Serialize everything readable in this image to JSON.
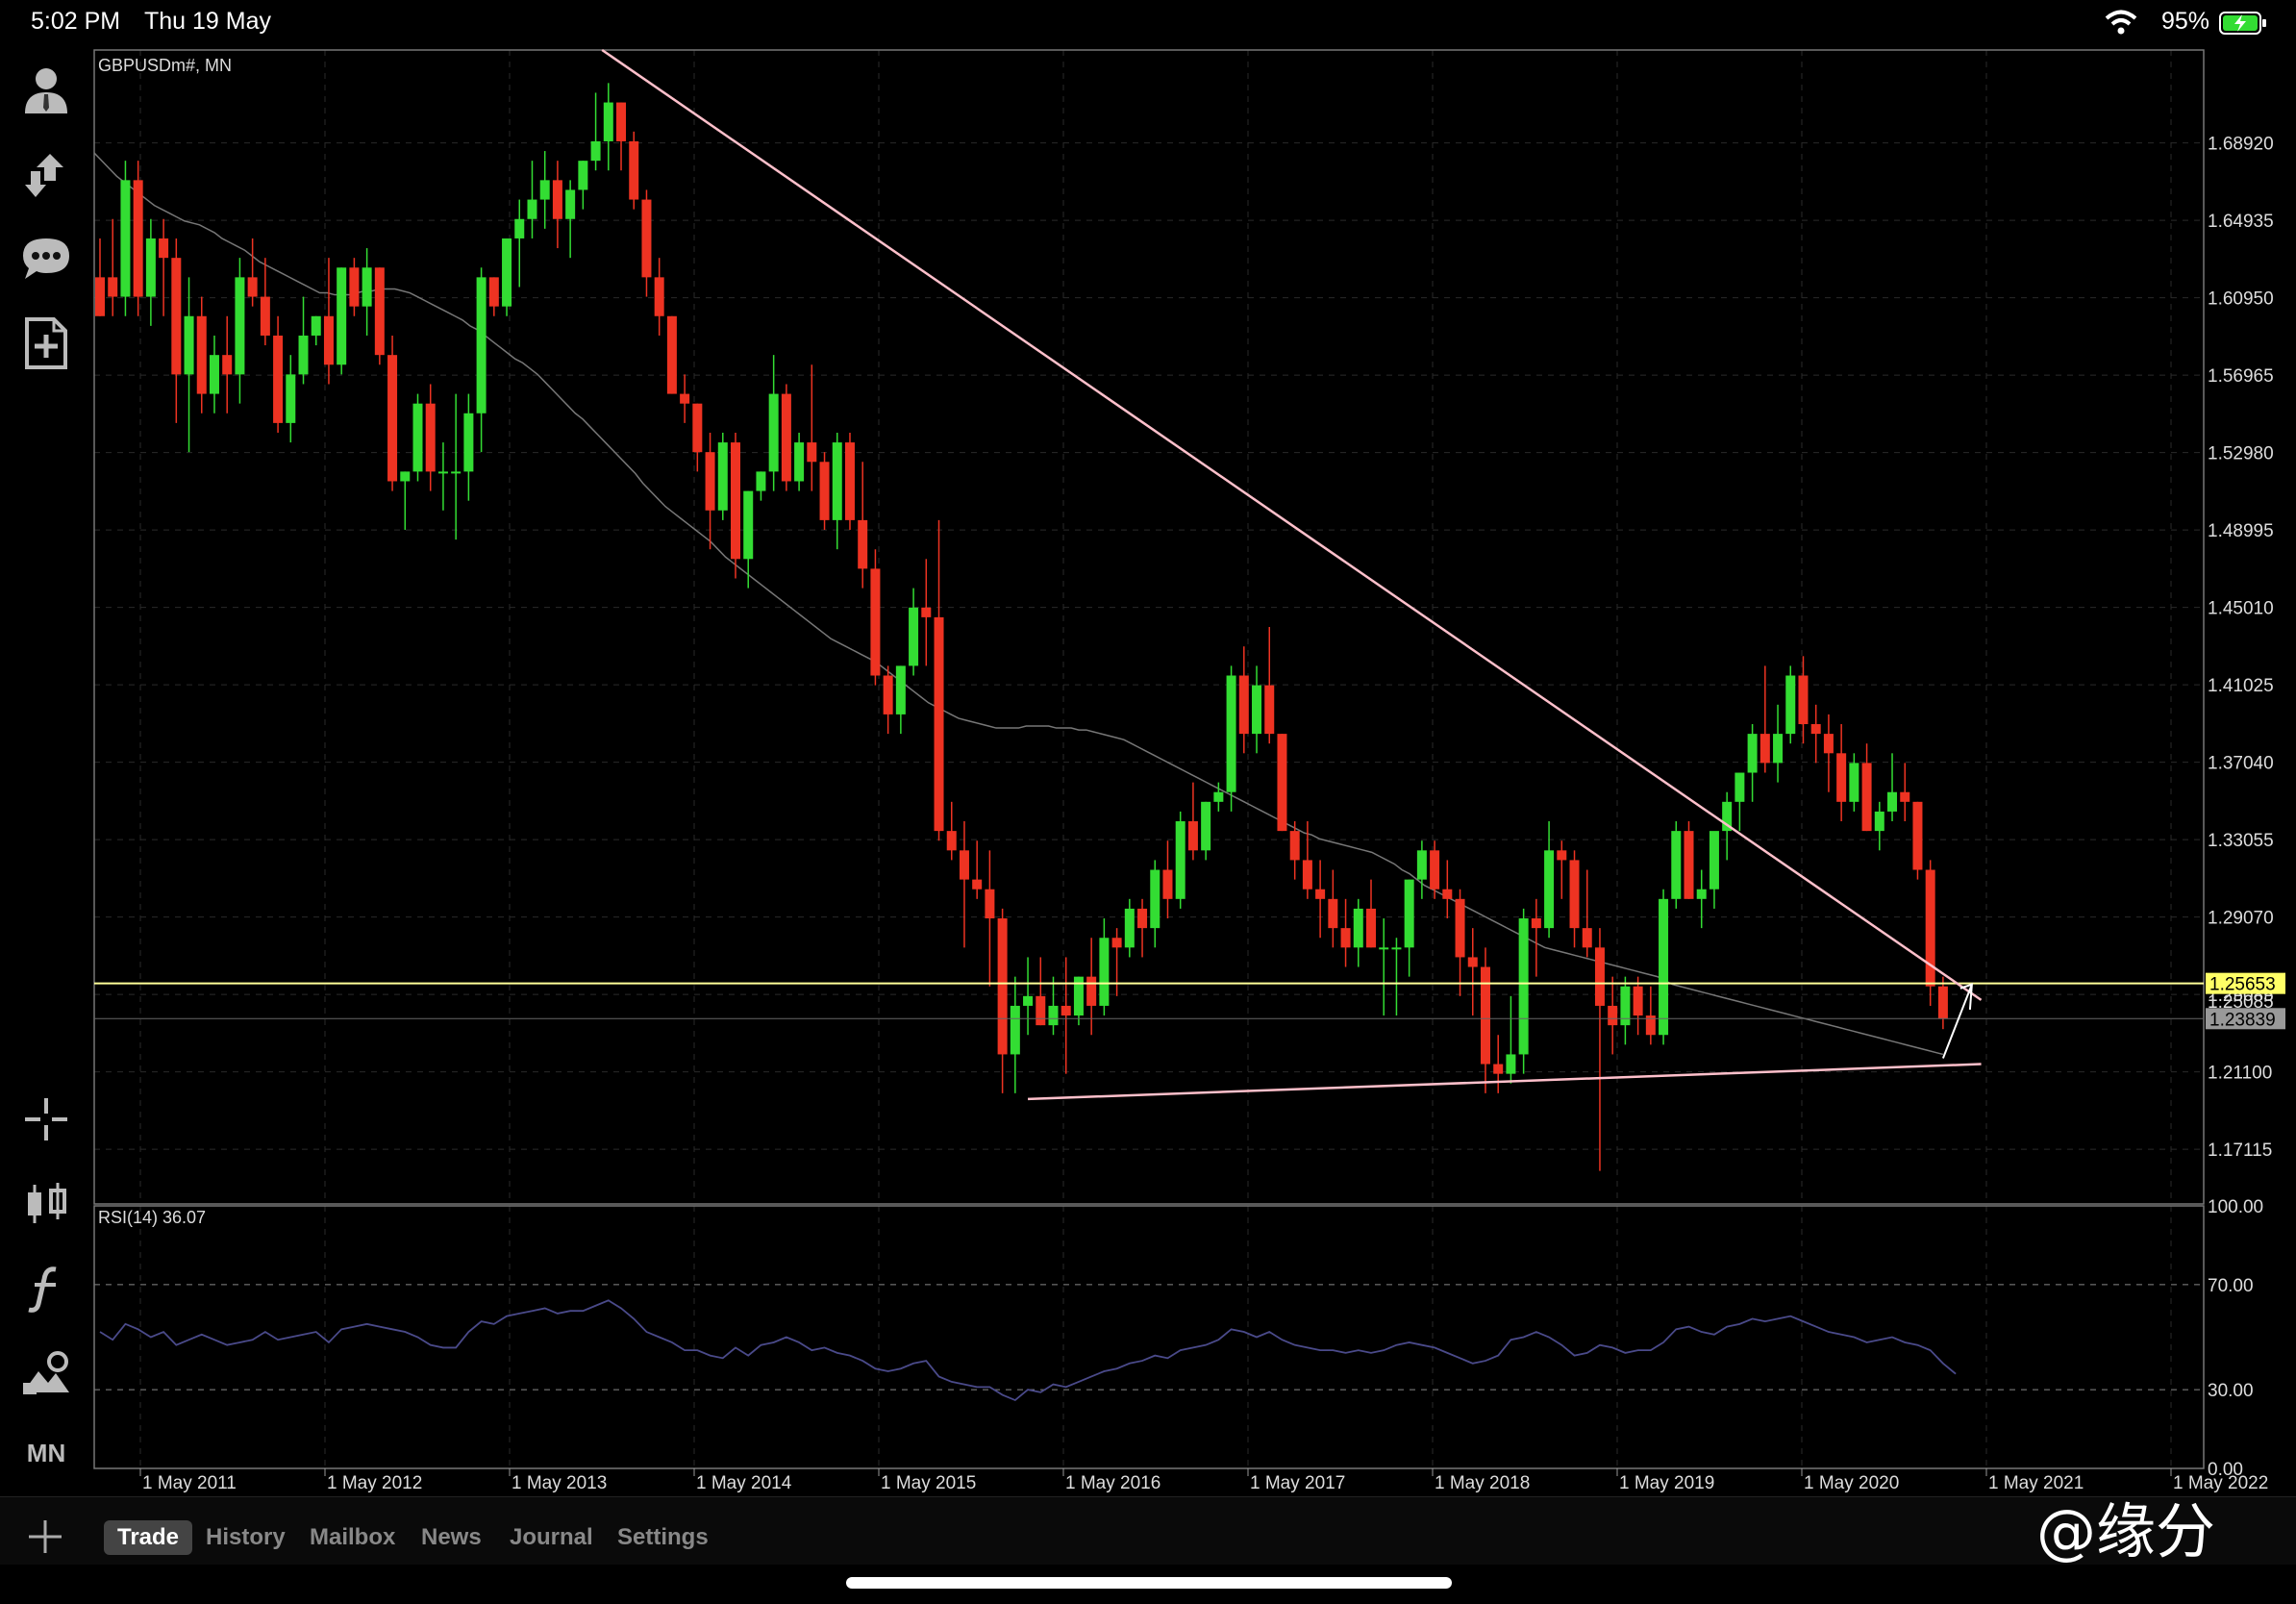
{
  "status": {
    "time": "5:02 PM",
    "date": "Thu 19 May",
    "battery": "95%"
  },
  "sidebar_icons": [
    "account-icon",
    "trade-arrows-icon",
    "chat-icon",
    "new-order-icon",
    "crosshair-icon",
    "chart-type-icon",
    "indicators-icon",
    "objects-icon"
  ],
  "timeframe": "MN",
  "tabs": [
    {
      "label": "Trade",
      "active": true
    },
    {
      "label": "History",
      "active": false
    },
    {
      "label": "Mailbox",
      "active": false
    },
    {
      "label": "News",
      "active": false
    },
    {
      "label": "Journal",
      "active": false
    },
    {
      "label": "Settings",
      "active": false
    }
  ],
  "watermark": "@缘分",
  "colors": {
    "bull": "#33dd33",
    "bear": "#ee3322",
    "grid": "#2a2a2a",
    "trend": "#ffc0cb",
    "hline": "#ffff99",
    "rsi": "#4a4a8a",
    "ma": "#777777",
    "price_tag_bg": "#ffff66",
    "price_tag2_bg": "#999999"
  },
  "chart_data": {
    "type": "candlestick",
    "symbol_label": "GBPUSDm#, MN",
    "y_ticks": [
      "1.68920",
      "1.64935",
      "1.60950",
      "1.56965",
      "1.52980",
      "1.48995",
      "1.45010",
      "1.41025",
      "1.37040",
      "1.33055",
      "1.29070",
      "1.25085",
      "1.21100",
      "1.17115"
    ],
    "ylim": [
      1.143,
      1.737
    ],
    "x_ticks": [
      "1 May 2011",
      "1 May 2012",
      "1 May 2013",
      "1 May 2014",
      "1 May 2015",
      "1 May 2016",
      "1 May 2017",
      "1 May 2018",
      "1 May 2019",
      "1 May 2020",
      "1 May 2021",
      "1 May 2022"
    ],
    "current_price_label": "1.25653",
    "second_price_label": "1.23839",
    "hidden_price_label": "1.25085",
    "hlines": [
      1.25653,
      1.23839
    ],
    "ohlc": [
      [
        1.62,
        1.64,
        1.6,
        1.6
      ],
      [
        1.62,
        1.65,
        1.6,
        1.61
      ],
      [
        1.61,
        1.68,
        1.6,
        1.67
      ],
      [
        1.67,
        1.68,
        1.6,
        1.61
      ],
      [
        1.61,
        1.65,
        1.595,
        1.64
      ],
      [
        1.64,
        1.65,
        1.6,
        1.63
      ],
      [
        1.63,
        1.64,
        1.545,
        1.57
      ],
      [
        1.57,
        1.62,
        1.53,
        1.6
      ],
      [
        1.6,
        1.61,
        1.55,
        1.56
      ],
      [
        1.56,
        1.59,
        1.55,
        1.58
      ],
      [
        1.58,
        1.6,
        1.55,
        1.57
      ],
      [
        1.57,
        1.63,
        1.555,
        1.62
      ],
      [
        1.62,
        1.64,
        1.605,
        1.61
      ],
      [
        1.61,
        1.63,
        1.585,
        1.59
      ],
      [
        1.59,
        1.6,
        1.54,
        1.545
      ],
      [
        1.545,
        1.58,
        1.535,
        1.57
      ],
      [
        1.57,
        1.61,
        1.565,
        1.59
      ],
      [
        1.59,
        1.6,
        1.585,
        1.6
      ],
      [
        1.6,
        1.63,
        1.565,
        1.575
      ],
      [
        1.575,
        1.625,
        1.57,
        1.625
      ],
      [
        1.625,
        1.63,
        1.6,
        1.605
      ],
      [
        1.605,
        1.635,
        1.59,
        1.625
      ],
      [
        1.625,
        1.625,
        1.575,
        1.58
      ],
      [
        1.58,
        1.59,
        1.51,
        1.515
      ],
      [
        1.515,
        1.52,
        1.49,
        1.52
      ],
      [
        1.52,
        1.56,
        1.515,
        1.555
      ],
      [
        1.555,
        1.565,
        1.51,
        1.52
      ],
      [
        1.52,
        1.535,
        1.5,
        1.52
      ],
      [
        1.52,
        1.56,
        1.485,
        1.52
      ],
      [
        1.52,
        1.56,
        1.505,
        1.55
      ],
      [
        1.55,
        1.625,
        1.53,
        1.62
      ],
      [
        1.62,
        1.62,
        1.6,
        1.605
      ],
      [
        1.605,
        1.64,
        1.6,
        1.64
      ],
      [
        1.64,
        1.66,
        1.615,
        1.65
      ],
      [
        1.65,
        1.68,
        1.64,
        1.66
      ],
      [
        1.66,
        1.685,
        1.645,
        1.67
      ],
      [
        1.67,
        1.68,
        1.635,
        1.65
      ],
      [
        1.65,
        1.67,
        1.63,
        1.665
      ],
      [
        1.665,
        1.68,
        1.655,
        1.68
      ],
      [
        1.68,
        1.715,
        1.675,
        1.69
      ],
      [
        1.69,
        1.72,
        1.675,
        1.71
      ],
      [
        1.71,
        1.71,
        1.675,
        1.69
      ],
      [
        1.69,
        1.695,
        1.655,
        1.66
      ],
      [
        1.66,
        1.665,
        1.61,
        1.62
      ],
      [
        1.62,
        1.63,
        1.59,
        1.6
      ],
      [
        1.6,
        1.6,
        1.56,
        1.56
      ],
      [
        1.56,
        1.57,
        1.545,
        1.555
      ],
      [
        1.555,
        1.555,
        1.52,
        1.53
      ],
      [
        1.53,
        1.54,
        1.48,
        1.5
      ],
      [
        1.5,
        1.54,
        1.495,
        1.535
      ],
      [
        1.535,
        1.54,
        1.465,
        1.475
      ],
      [
        1.475,
        1.51,
        1.46,
        1.51
      ],
      [
        1.51,
        1.52,
        1.505,
        1.52
      ],
      [
        1.52,
        1.58,
        1.51,
        1.56
      ],
      [
        1.56,
        1.565,
        1.51,
        1.515
      ],
      [
        1.515,
        1.54,
        1.51,
        1.535
      ],
      [
        1.535,
        1.575,
        1.51,
        1.525
      ],
      [
        1.525,
        1.53,
        1.49,
        1.495
      ],
      [
        1.495,
        1.54,
        1.48,
        1.535
      ],
      [
        1.535,
        1.54,
        1.49,
        1.495
      ],
      [
        1.495,
        1.525,
        1.46,
        1.47
      ],
      [
        1.47,
        1.48,
        1.41,
        1.415
      ],
      [
        1.415,
        1.42,
        1.385,
        1.395
      ],
      [
        1.395,
        1.42,
        1.385,
        1.42
      ],
      [
        1.42,
        1.46,
        1.415,
        1.45
      ],
      [
        1.45,
        1.475,
        1.42,
        1.445
      ],
      [
        1.445,
        1.495,
        1.33,
        1.335
      ],
      [
        1.335,
        1.35,
        1.32,
        1.325
      ],
      [
        1.325,
        1.34,
        1.275,
        1.31
      ],
      [
        1.31,
        1.33,
        1.3,
        1.305
      ],
      [
        1.305,
        1.325,
        1.255,
        1.29
      ],
      [
        1.29,
        1.295,
        1.2,
        1.22
      ],
      [
        1.22,
        1.26,
        1.2,
        1.245
      ],
      [
        1.245,
        1.27,
        1.23,
        1.25
      ],
      [
        1.25,
        1.27,
        1.235,
        1.235
      ],
      [
        1.235,
        1.26,
        1.23,
        1.245
      ],
      [
        1.245,
        1.27,
        1.21,
        1.24
      ],
      [
        1.24,
        1.26,
        1.235,
        1.26
      ],
      [
        1.26,
        1.28,
        1.23,
        1.245
      ],
      [
        1.245,
        1.29,
        1.24,
        1.28
      ],
      [
        1.28,
        1.285,
        1.25,
        1.275
      ],
      [
        1.275,
        1.3,
        1.27,
        1.295
      ],
      [
        1.295,
        1.3,
        1.27,
        1.285
      ],
      [
        1.285,
        1.32,
        1.275,
        1.315
      ],
      [
        1.315,
        1.33,
        1.29,
        1.3
      ],
      [
        1.3,
        1.345,
        1.295,
        1.34
      ],
      [
        1.34,
        1.36,
        1.32,
        1.325
      ],
      [
        1.325,
        1.35,
        1.32,
        1.35
      ],
      [
        1.35,
        1.36,
        1.345,
        1.355
      ],
      [
        1.355,
        1.42,
        1.345,
        1.415
      ],
      [
        1.415,
        1.43,
        1.375,
        1.385
      ],
      [
        1.385,
        1.42,
        1.375,
        1.41
      ],
      [
        1.41,
        1.44,
        1.38,
        1.385
      ],
      [
        1.385,
        1.385,
        1.335,
        1.335
      ],
      [
        1.335,
        1.34,
        1.31,
        1.32
      ],
      [
        1.32,
        1.34,
        1.3,
        1.305
      ],
      [
        1.305,
        1.32,
        1.28,
        1.3
      ],
      [
        1.3,
        1.315,
        1.275,
        1.285
      ],
      [
        1.285,
        1.3,
        1.265,
        1.275
      ],
      [
        1.275,
        1.3,
        1.265,
        1.295
      ],
      [
        1.295,
        1.31,
        1.275,
        1.275
      ],
      [
        1.275,
        1.29,
        1.24,
        1.275
      ],
      [
        1.275,
        1.28,
        1.24,
        1.275
      ],
      [
        1.275,
        1.31,
        1.26,
        1.31
      ],
      [
        1.31,
        1.33,
        1.3,
        1.325
      ],
      [
        1.325,
        1.33,
        1.3,
        1.305
      ],
      [
        1.305,
        1.32,
        1.29,
        1.3
      ],
      [
        1.3,
        1.305,
        1.25,
        1.27
      ],
      [
        1.27,
        1.285,
        1.24,
        1.265
      ],
      [
        1.265,
        1.275,
        1.2,
        1.215
      ],
      [
        1.215,
        1.23,
        1.2,
        1.21
      ],
      [
        1.21,
        1.25,
        1.205,
        1.22
      ],
      [
        1.22,
        1.295,
        1.21,
        1.29
      ],
      [
        1.29,
        1.3,
        1.26,
        1.285
      ],
      [
        1.285,
        1.34,
        1.28,
        1.325
      ],
      [
        1.325,
        1.33,
        1.3,
        1.32
      ],
      [
        1.32,
        1.325,
        1.275,
        1.285
      ],
      [
        1.285,
        1.315,
        1.27,
        1.275
      ],
      [
        1.275,
        1.285,
        1.16,
        1.245
      ],
      [
        1.245,
        1.26,
        1.22,
        1.235
      ],
      [
        1.235,
        1.26,
        1.225,
        1.255
      ],
      [
        1.255,
        1.26,
        1.23,
        1.24
      ],
      [
        1.24,
        1.255,
        1.225,
        1.23
      ],
      [
        1.23,
        1.305,
        1.225,
        1.3
      ],
      [
        1.3,
        1.34,
        1.295,
        1.335
      ],
      [
        1.335,
        1.34,
        1.3,
        1.3
      ],
      [
        1.3,
        1.315,
        1.285,
        1.305
      ],
      [
        1.305,
        1.33,
        1.295,
        1.335
      ],
      [
        1.335,
        1.355,
        1.32,
        1.35
      ],
      [
        1.35,
        1.365,
        1.335,
        1.365
      ],
      [
        1.365,
        1.39,
        1.35,
        1.385
      ],
      [
        1.385,
        1.42,
        1.365,
        1.37
      ],
      [
        1.37,
        1.4,
        1.36,
        1.385
      ],
      [
        1.385,
        1.42,
        1.38,
        1.415
      ],
      [
        1.415,
        1.425,
        1.38,
        1.39
      ],
      [
        1.39,
        1.4,
        1.37,
        1.385
      ],
      [
        1.385,
        1.395,
        1.355,
        1.375
      ],
      [
        1.375,
        1.39,
        1.34,
        1.35
      ],
      [
        1.35,
        1.375,
        1.345,
        1.37
      ],
      [
        1.37,
        1.38,
        1.335,
        1.335
      ],
      [
        1.335,
        1.35,
        1.325,
        1.345
      ],
      [
        1.345,
        1.375,
        1.34,
        1.355
      ],
      [
        1.355,
        1.37,
        1.34,
        1.35
      ],
      [
        1.35,
        1.35,
        1.31,
        1.315
      ],
      [
        1.315,
        1.32,
        1.245,
        1.255
      ],
      [
        1.255,
        1.26,
        1.233,
        1.2384
      ]
    ],
    "rsi": {
      "label": "RSI(14) 36.07",
      "levels": [
        30,
        70
      ],
      "ylim": [
        0,
        100
      ],
      "y_ticks": [
        "100.00",
        "70.00",
        "30.00",
        "0.00"
      ],
      "values": [
        52,
        49,
        55,
        53,
        50,
        52,
        47,
        49,
        51,
        49,
        47,
        48,
        49,
        52,
        49,
        50,
        51,
        52,
        48,
        53,
        54,
        55,
        54,
        53,
        52,
        50,
        47,
        46,
        46,
        52,
        56,
        55,
        58,
        59,
        60,
        61,
        59,
        60,
        60,
        62,
        64,
        61,
        57,
        52,
        50,
        48,
        45,
        45,
        43,
        42,
        46,
        43,
        47,
        48,
        50,
        48,
        45,
        46,
        44,
        43,
        41,
        38,
        37,
        38,
        40,
        41,
        35,
        33,
        32,
        31,
        31,
        28,
        26,
        30,
        29,
        32,
        31,
        33,
        35,
        37,
        38,
        40,
        41,
        43,
        42,
        45,
        46,
        47,
        49,
        53,
        52,
        50,
        52,
        49,
        47,
        46,
        45,
        45,
        44,
        45,
        44,
        45,
        47,
        48,
        47,
        46,
        44,
        42,
        40,
        41,
        43,
        49,
        50,
        52,
        50,
        47,
        43,
        44,
        47,
        46,
        44,
        45,
        45,
        48,
        53,
        54,
        52,
        51,
        54,
        55,
        57,
        56,
        57,
        58,
        56,
        54,
        52,
        51,
        50,
        48,
        49,
        50,
        48,
        47,
        45,
        40,
        36
      ]
    },
    "ma_line": [
      1.684,
      1.68,
      1.676,
      1.672,
      1.669,
      1.666,
      1.663,
      1.66,
      1.657,
      1.655,
      1.653,
      1.651,
      1.649,
      1.648,
      1.647,
      1.645,
      1.643,
      1.64,
      1.638,
      1.636,
      1.634,
      1.631,
      1.628,
      1.626,
      1.624,
      1.622,
      1.62,
      1.618,
      1.616,
      1.614,
      1.612,
      1.612,
      1.611,
      1.611,
      1.611,
      1.612,
      1.613,
      1.613,
      1.614,
      1.614,
      1.614,
      1.613,
      1.612,
      1.61,
      1.608,
      1.606,
      1.604,
      1.602,
      1.6,
      1.598,
      1.595,
      1.593,
      1.59,
      1.587,
      1.584,
      1.581,
      1.578,
      1.576,
      1.573,
      1.57,
      1.566,
      1.562,
      1.558,
      1.554,
      1.55,
      1.547,
      1.543,
      1.539,
      1.535,
      1.531,
      1.527,
      1.523,
      1.519,
      1.514,
      1.51,
      1.506,
      1.502,
      1.499,
      1.496,
      1.493,
      1.49,
      1.487,
      1.484,
      1.48,
      1.476,
      1.473,
      1.47,
      1.467,
      1.464,
      1.461,
      1.458,
      1.455,
      1.452,
      1.449,
      1.446,
      1.443,
      1.44,
      1.437,
      1.434,
      1.432,
      1.43,
      1.428,
      1.426,
      1.424,
      1.422,
      1.419,
      1.416,
      1.413,
      1.41,
      1.407,
      1.404,
      1.401,
      1.399,
      1.397,
      1.395,
      1.393,
      1.392,
      1.391,
      1.39,
      1.389,
      1.388,
      1.388,
      1.388,
      1.388,
      1.389,
      1.389,
      1.389,
      1.389,
      1.388,
      1.388,
      1.388,
      1.387,
      1.387,
      1.386,
      1.385,
      1.384,
      1.383,
      1.382,
      1.38,
      1.378,
      1.376,
      1.374,
      1.372,
      1.37,
      1.368,
      1.366,
      1.364,
      1.362,
      1.36,
      1.358,
      1.356,
      1.354,
      1.352,
      1.35,
      1.348,
      1.346,
      1.344,
      1.342,
      1.34,
      1.338,
      1.336,
      1.334,
      1.333,
      1.331,
      1.33,
      1.329,
      1.328,
      1.327,
      1.326,
      1.325,
      1.324,
      1.322,
      1.32,
      1.318,
      1.315,
      1.313,
      1.31,
      1.307,
      1.305,
      1.303,
      1.301,
      1.299,
      1.297,
      1.295,
      1.293,
      1.291,
      1.289,
      1.287,
      1.285,
      1.283,
      1.281,
      1.279,
      1.277,
      1.275,
      1.274,
      1.273,
      1.272,
      1.271,
      1.27,
      1.269,
      1.268,
      1.267,
      1.266,
      1.265,
      1.264,
      1.263,
      1.262,
      1.261,
      1.26,
      1.258,
      1.256,
      1.255,
      1.254,
      1.253,
      1.252,
      1.251,
      1.25,
      1.249,
      1.248,
      1.247,
      1.246,
      1.245,
      1.244,
      1.243,
      1.242,
      1.241,
      1.24,
      1.239,
      1.238,
      1.237,
      1.236,
      1.235,
      1.234,
      1.233,
      1.232,
      1.231,
      1.23,
      1.229,
      1.228,
      1.227,
      1.226,
      1.225,
      1.224,
      1.223,
      1.222,
      1.221,
      1.22
    ],
    "trendlines": [
      {
        "from_index": 39.5,
        "from_price": 1.737,
        "to_index": 148,
        "to_price": 1.248
      },
      {
        "from_index": 73,
        "from_price": 1.197,
        "to_index": 148,
        "to_price": 1.215
      }
    ]
  }
}
